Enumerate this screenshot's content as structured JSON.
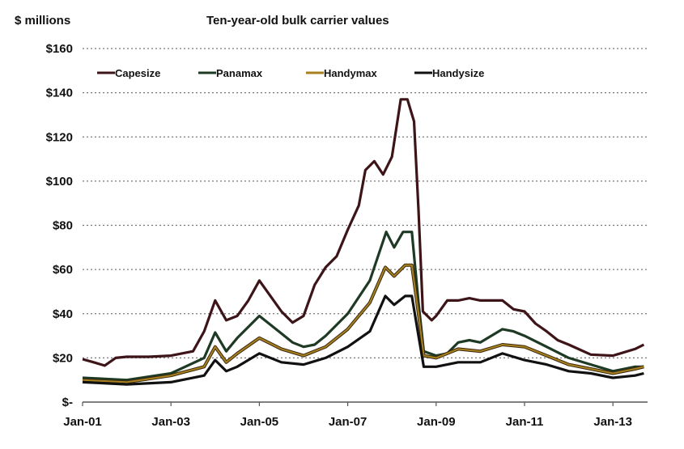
{
  "chart_data": {
    "type": "line",
    "title": "Ten-year-old bulk carrier values",
    "ylabel": "$ millions",
    "xlabel": "",
    "ylim": [
      0,
      160
    ],
    "xlim": [
      2001,
      2013.75
    ],
    "grid": true,
    "legend_position": "top-left",
    "y_ticks": [
      {
        "value": 0,
        "label": "$-"
      },
      {
        "value": 20,
        "label": "$20"
      },
      {
        "value": 40,
        "label": "$40"
      },
      {
        "value": 60,
        "label": "$60"
      },
      {
        "value": 80,
        "label": "$80"
      },
      {
        "value": 100,
        "label": "$100"
      },
      {
        "value": 120,
        "label": "$120"
      },
      {
        "value": 140,
        "label": "$140"
      },
      {
        "value": 160,
        "label": "$160"
      }
    ],
    "x_ticks": [
      {
        "value": 2001,
        "label": "Jan-01"
      },
      {
        "value": 2003,
        "label": "Jan-03"
      },
      {
        "value": 2005,
        "label": "Jan-05"
      },
      {
        "value": 2007,
        "label": "Jan-07"
      },
      {
        "value": 2009,
        "label": "Jan-09"
      },
      {
        "value": 2011,
        "label": "Jan-11"
      },
      {
        "value": 2013,
        "label": "Jan-13"
      }
    ],
    "series": [
      {
        "name": "Capesize",
        "color": "#3d1519",
        "points": [
          [
            2001,
            19.4
          ],
          [
            2001.25,
            18
          ],
          [
            2001.5,
            16.5
          ],
          [
            2001.75,
            20
          ],
          [
            2002,
            20.5
          ],
          [
            2002.5,
            20.5
          ],
          [
            2003,
            21
          ],
          [
            2003.5,
            23
          ],
          [
            2003.75,
            32
          ],
          [
            2004,
            46
          ],
          [
            2004.25,
            37
          ],
          [
            2004.5,
            39
          ],
          [
            2004.75,
            46
          ],
          [
            2005,
            55
          ],
          [
            2005.25,
            48
          ],
          [
            2005.5,
            41
          ],
          [
            2005.75,
            36
          ],
          [
            2006,
            39
          ],
          [
            2006.25,
            53
          ],
          [
            2006.5,
            61
          ],
          [
            2006.75,
            66
          ],
          [
            2007,
            78
          ],
          [
            2007.25,
            89
          ],
          [
            2007.4,
            105
          ],
          [
            2007.6,
            109
          ],
          [
            2007.8,
            103
          ],
          [
            2008,
            111
          ],
          [
            2008.2,
            137
          ],
          [
            2008.35,
            137
          ],
          [
            2008.5,
            127
          ],
          [
            2008.6,
            87
          ],
          [
            2008.7,
            41
          ],
          [
            2008.9,
            37
          ],
          [
            2009,
            39
          ],
          [
            2009.25,
            46
          ],
          [
            2009.5,
            46
          ],
          [
            2009.75,
            47
          ],
          [
            2010,
            46
          ],
          [
            2010.5,
            46
          ],
          [
            2010.75,
            42
          ],
          [
            2011,
            41
          ],
          [
            2011.25,
            35.5
          ],
          [
            2011.5,
            32
          ],
          [
            2011.75,
            28
          ],
          [
            2012,
            26
          ],
          [
            2012.5,
            21.5
          ],
          [
            2013,
            21
          ],
          [
            2013.5,
            24
          ],
          [
            2013.7,
            26
          ]
        ]
      },
      {
        "name": "Panamax",
        "color": "#1f3a24",
        "points": [
          [
            2001,
            11
          ],
          [
            2002,
            10
          ],
          [
            2003,
            13
          ],
          [
            2003.75,
            20
          ],
          [
            2004,
            31.5
          ],
          [
            2004.25,
            23
          ],
          [
            2004.5,
            29
          ],
          [
            2005,
            39
          ],
          [
            2005.5,
            31
          ],
          [
            2005.75,
            27
          ],
          [
            2006,
            25
          ],
          [
            2006.25,
            26
          ],
          [
            2006.5,
            30
          ],
          [
            2007,
            40
          ],
          [
            2007.5,
            55
          ],
          [
            2007.87,
            77
          ],
          [
            2008.05,
            70
          ],
          [
            2008.25,
            77
          ],
          [
            2008.45,
            77
          ],
          [
            2008.6,
            45
          ],
          [
            2008.72,
            23
          ],
          [
            2009,
            21
          ],
          [
            2009.25,
            22
          ],
          [
            2009.5,
            27
          ],
          [
            2009.75,
            28
          ],
          [
            2010,
            27
          ],
          [
            2010.5,
            33
          ],
          [
            2010.75,
            32
          ],
          [
            2011,
            30
          ],
          [
            2011.5,
            25
          ],
          [
            2012,
            20
          ],
          [
            2012.5,
            17
          ],
          [
            2013,
            14
          ],
          [
            2013.5,
            16
          ],
          [
            2013.7,
            16
          ]
        ]
      },
      {
        "name": "Handymax",
        "color": "#a8801e",
        "points": [
          [
            2001,
            10
          ],
          [
            2002,
            9
          ],
          [
            2003,
            12
          ],
          [
            2003.75,
            16
          ],
          [
            2004,
            25
          ],
          [
            2004.25,
            18
          ],
          [
            2004.5,
            22
          ],
          [
            2005,
            29
          ],
          [
            2005.5,
            24
          ],
          [
            2006,
            21
          ],
          [
            2006.5,
            25
          ],
          [
            2007,
            33
          ],
          [
            2007.5,
            45
          ],
          [
            2007.85,
            61
          ],
          [
            2008.05,
            57
          ],
          [
            2008.3,
            62
          ],
          [
            2008.45,
            62
          ],
          [
            2008.6,
            40
          ],
          [
            2008.72,
            21
          ],
          [
            2009,
            20
          ],
          [
            2009.5,
            24
          ],
          [
            2010,
            23
          ],
          [
            2010.5,
            26
          ],
          [
            2011,
            25
          ],
          [
            2011.5,
            21
          ],
          [
            2012,
            17
          ],
          [
            2012.5,
            15
          ],
          [
            2013,
            13
          ],
          [
            2013.5,
            15
          ],
          [
            2013.7,
            16
          ]
        ]
      },
      {
        "name": "Handysize",
        "color": "#111111",
        "points": [
          [
            2001,
            9
          ],
          [
            2002,
            8
          ],
          [
            2003,
            9
          ],
          [
            2003.75,
            12
          ],
          [
            2004,
            19
          ],
          [
            2004.25,
            14
          ],
          [
            2004.5,
            16
          ],
          [
            2005,
            22
          ],
          [
            2005.5,
            18
          ],
          [
            2006,
            17
          ],
          [
            2006.5,
            20
          ],
          [
            2007,
            25
          ],
          [
            2007.5,
            32
          ],
          [
            2007.85,
            48
          ],
          [
            2008.05,
            44
          ],
          [
            2008.3,
            48
          ],
          [
            2008.45,
            48
          ],
          [
            2008.6,
            30
          ],
          [
            2008.72,
            16
          ],
          [
            2009,
            16
          ],
          [
            2009.5,
            18
          ],
          [
            2010,
            18
          ],
          [
            2010.5,
            22
          ],
          [
            2011,
            19
          ],
          [
            2011.5,
            17
          ],
          [
            2012,
            14
          ],
          [
            2012.5,
            13
          ],
          [
            2013,
            11
          ],
          [
            2013.5,
            12
          ],
          [
            2013.7,
            13
          ]
        ]
      }
    ]
  }
}
